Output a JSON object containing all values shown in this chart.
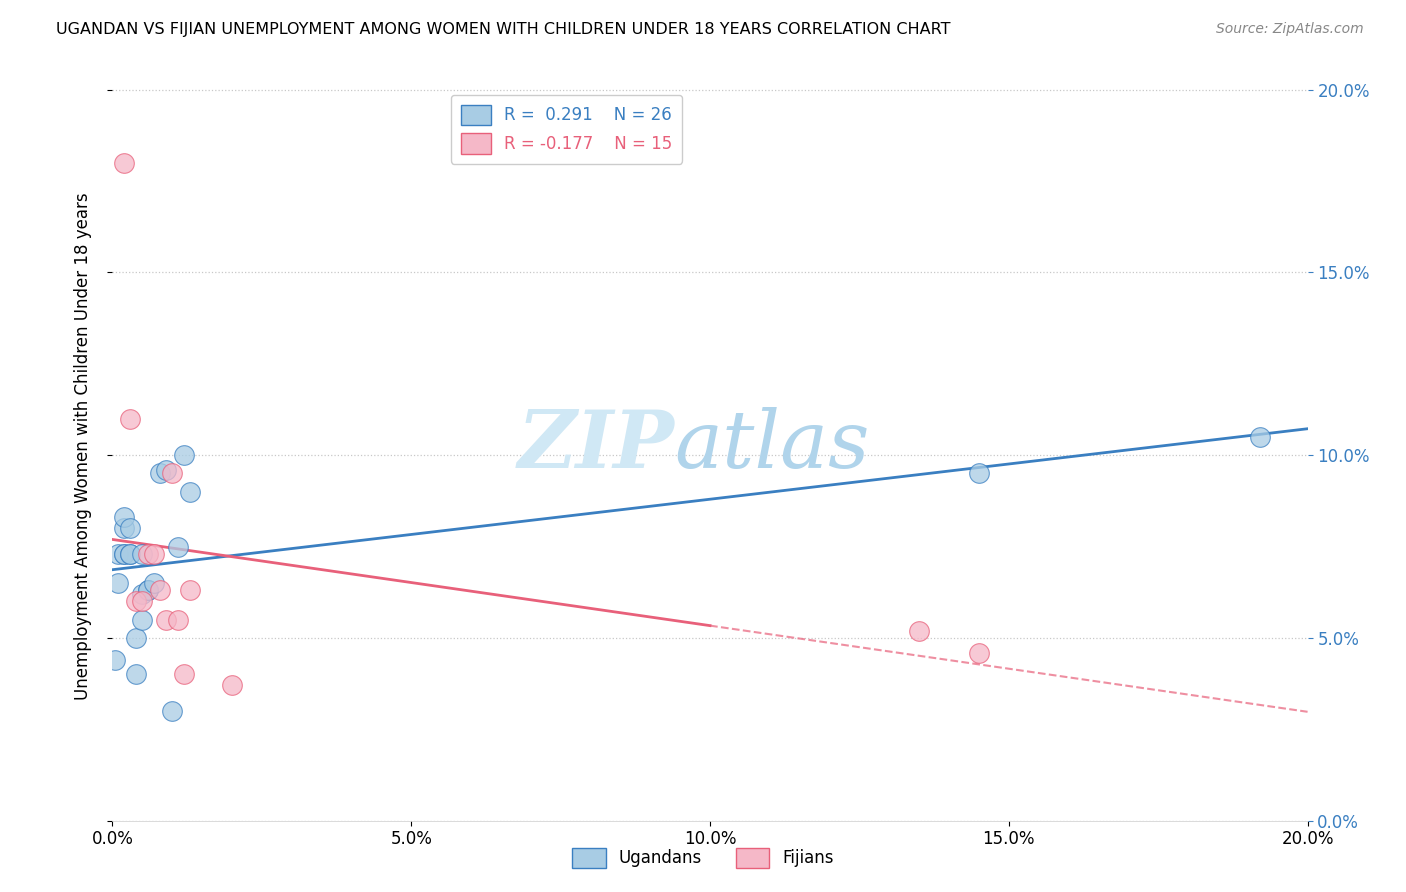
{
  "title": "UGANDAN VS FIJIAN UNEMPLOYMENT AMONG WOMEN WITH CHILDREN UNDER 18 YEARS CORRELATION CHART",
  "source": "Source: ZipAtlas.com",
  "ylabel": "Unemployment Among Women with Children Under 18 years",
  "ugandan_R": 0.291,
  "ugandan_N": 26,
  "fijian_R": -0.177,
  "fijian_N": 15,
  "ugandan_color": "#a8cce4",
  "fijian_color": "#f5b8c8",
  "ugandan_line_color": "#3a7fc1",
  "fijian_line_color": "#e8607a",
  "watermark_zip": "ZIP",
  "watermark_atlas": "atlas",
  "xlim": [
    0,
    0.2
  ],
  "ylim": [
    0,
    0.205
  ],
  "ugandan_x": [
    0.0005,
    0.001,
    0.001,
    0.002,
    0.002,
    0.002,
    0.002,
    0.003,
    0.003,
    0.003,
    0.004,
    0.004,
    0.005,
    0.005,
    0.005,
    0.006,
    0.006,
    0.007,
    0.008,
    0.009,
    0.01,
    0.011,
    0.012,
    0.013,
    0.145,
    0.192
  ],
  "ugandan_y": [
    0.044,
    0.073,
    0.065,
    0.08,
    0.073,
    0.073,
    0.083,
    0.073,
    0.073,
    0.08,
    0.05,
    0.04,
    0.062,
    0.055,
    0.073,
    0.063,
    0.063,
    0.065,
    0.095,
    0.096,
    0.03,
    0.075,
    0.1,
    0.09,
    0.095,
    0.105
  ],
  "fijian_x": [
    0.002,
    0.003,
    0.004,
    0.005,
    0.006,
    0.007,
    0.008,
    0.009,
    0.01,
    0.011,
    0.012,
    0.013,
    0.02,
    0.135,
    0.145
  ],
  "fijian_y": [
    0.18,
    0.11,
    0.06,
    0.06,
    0.073,
    0.073,
    0.063,
    0.055,
    0.095,
    0.055,
    0.04,
    0.063,
    0.037,
    0.052,
    0.046
  ],
  "background_color": "#ffffff",
  "grid_color": "#c8c8c8"
}
